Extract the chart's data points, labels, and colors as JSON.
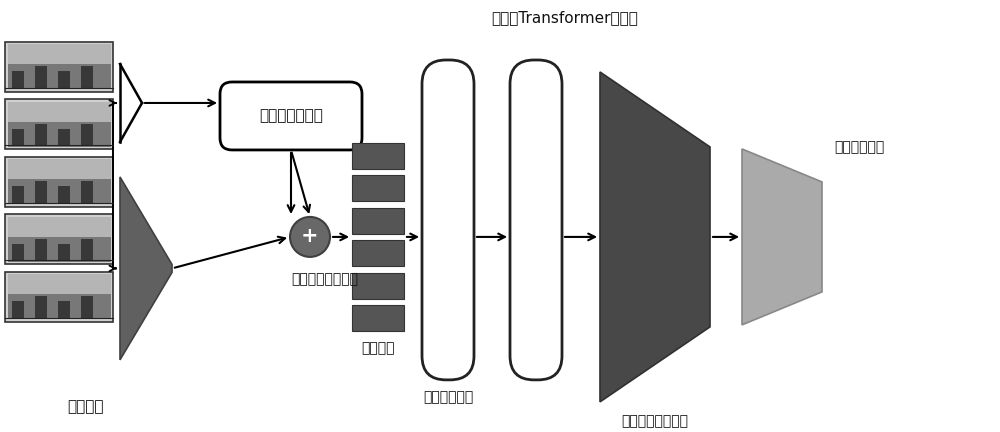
{
  "bg_color": "#ffffff",
  "text_color": "#111111",
  "dark_gray": "#505050",
  "mid_gray": "#777777",
  "light_gray": "#aaaaaa",
  "frame_outer": "#404040",
  "frame_inner": "#909090",
  "frame_dark": "#505050",
  "bar_color": "#555555",
  "bar_edge": "#333333",
  "circle_color": "#686868",
  "enc_face": "#ffffff",
  "enc_edge": "#222222",
  "dec_face": "#484848",
  "res_face": "#aaaaaa",
  "labels": {
    "backbone": "骨干网络",
    "clip_attention": "片段全局注意力",
    "latent_fusion": "潜在动作区间融合",
    "action_clips": "动作片段",
    "full_seq_attention": "全序列注意力",
    "multi_scale_encoder": "多尺寸Transformer编码器",
    "light_decoder": "轻量化卷积解码器",
    "result": "动作检测结果"
  },
  "font_size": 11,
  "font_size_sm": 10
}
